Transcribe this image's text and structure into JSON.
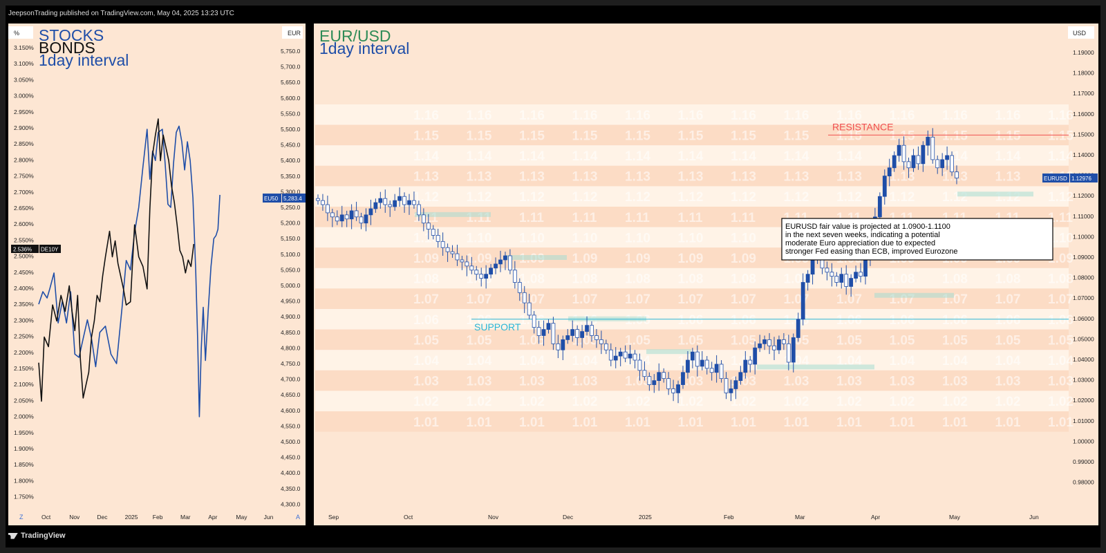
{
  "published": "JeepsonTrading published on TradingView.com, May 04, 2025 13:23 UTC",
  "footer": {
    "brand": "TradingView",
    "logo_icon": "tradingview-logo-icon"
  },
  "colors": {
    "panel_bg": "#fde6d3",
    "stocks": "#1f4ea8",
    "bonds": "#111111",
    "eurusd_title": "#2e8b57",
    "interval": "#1f4ea8",
    "resistance": "#f05050",
    "support": "#29b6d6",
    "candle": "#1f4ea8",
    "zone": "#a5dcd2"
  },
  "left_panel": {
    "title_stocks": "STOCKS",
    "title_bonds": "BONDS",
    "interval": "1day interval",
    "left_unit": "%",
    "right_unit": "EUR",
    "bottom_left": "Z",
    "bottom_right": "A",
    "bond_badge_value": "2.536%",
    "bond_badge_name": "DE10Y",
    "stock_badge_name": "EU50",
    "stock_badge_value": "5,283.4",
    "pct_ticks": [
      "3.150%",
      "3.100%",
      "3.050%",
      "3.000%",
      "2.950%",
      "2.900%",
      "2.850%",
      "2.800%",
      "2.750%",
      "2.700%",
      "2.650%",
      "2.600%",
      "2.550%",
      "2.500%",
      "2.450%",
      "2.400%",
      "2.350%",
      "2.300%",
      "2.250%",
      "2.200%",
      "2.150%",
      "2.100%",
      "2.050%",
      "2.000%",
      "1.950%",
      "1.900%",
      "1.850%",
      "1.800%",
      "1.750%"
    ],
    "eur_ticks": [
      "5,750.0",
      "5,700.0",
      "5,650.0",
      "5,600.0",
      "5,550.0",
      "5,500.0",
      "5,450.0",
      "5,400.0",
      "5,350.0",
      "5,300.0",
      "5,250.0",
      "5,200.0",
      "5,150.0",
      "5,100.0",
      "5,050.0",
      "5,000.0",
      "4,950.0",
      "4,900.0",
      "4,850.0",
      "4,800.0",
      "4,750.0",
      "4,700.0",
      "4,650.0",
      "4,600.0",
      "4,550.0",
      "4,500.0",
      "4,450.0",
      "4,400.0",
      "4,350.0",
      "4,300.0"
    ],
    "x_ticks": [
      "Oct",
      "Nov",
      "Dec",
      "2025",
      "Feb",
      "Mar",
      "Apr",
      "May",
      "Jun"
    ]
  },
  "right_panel": {
    "title": "EUR/USD",
    "interval": "1day interval",
    "unit": "USD",
    "resistance_label": "RESISTANCE",
    "support_label": "SUPPORT",
    "annotation_lines": [
      "EURUSD fair value is projected at 1.0900-1.1100",
      "in the next seven weeks, indicating a potential",
      "moderate Euro appreciation due to expected",
      "stronger Fed easing than ECB, improved Eurozone"
    ],
    "price_badge_name": "EURUSD",
    "price_badge_value": "1.12976",
    "y_ticks": [
      "1.19000",
      "1.18000",
      "1.17000",
      "1.16000",
      "1.15000",
      "1.14000",
      "1.13000",
      "1.12000",
      "1.11000",
      "1.10000",
      "1.09000",
      "1.08000",
      "1.07000",
      "1.06000",
      "1.05000",
      "1.04000",
      "1.03000",
      "1.02000",
      "1.01000",
      "1.00000",
      "0.99000",
      "0.98000"
    ],
    "x_ticks": [
      "Sep",
      "Oct",
      "Nov",
      "Dec",
      "2025",
      "Feb",
      "Mar",
      "Apr",
      "May",
      "Jun"
    ],
    "watermark_levels": [
      "1.16",
      "1.15",
      "1.14",
      "1.13",
      "1.12",
      "1.11",
      "1.10",
      "1.09",
      "1.08",
      "1.07",
      "1.06",
      "1.05",
      "1.04",
      "1.03",
      "1.02",
      "1.01"
    ]
  },
  "chart_data": [
    {
      "type": "line",
      "xlabel": "",
      "ylabel": "",
      "x_axis": [
        "Oct",
        "Nov",
        "Dec",
        "2025",
        "Feb",
        "Mar",
        "Apr",
        "May",
        "Jun"
      ],
      "series": [
        {
          "name": "STOCKS",
          "axis": "EUR",
          "values": [
            [
              0,
              4940
            ],
            [
              0.15,
              4980
            ],
            [
              0.3,
              4960
            ],
            [
              0.4,
              4990
            ],
            [
              0.55,
              5040
            ],
            [
              0.7,
              4880
            ],
            [
              0.85,
              4950
            ],
            [
              1.0,
              4880
            ],
            [
              1.15,
              4980
            ],
            [
              1.3,
              4780
            ],
            [
              1.45,
              4770
            ],
            [
              1.6,
              4830
            ],
            [
              1.75,
              4890
            ],
            [
              1.9,
              4830
            ],
            [
              2.05,
              4740
            ],
            [
              2.2,
              4850
            ],
            [
              2.4,
              4870
            ],
            [
              2.6,
              4780
            ],
            [
              2.8,
              4750
            ],
            [
              3.0,
              4930
            ],
            [
              3.15,
              5080
            ],
            [
              3.3,
              5050
            ],
            [
              3.45,
              5170
            ],
            [
              3.6,
              5250
            ],
            [
              3.75,
              5380
            ],
            [
              3.9,
              5500
            ],
            [
              4.0,
              5340
            ],
            [
              4.1,
              5430
            ],
            [
              4.2,
              5400
            ],
            [
              4.3,
              5490
            ],
            [
              4.45,
              5500
            ],
            [
              4.55,
              5390
            ],
            [
              4.65,
              5260
            ],
            [
              4.75,
              5250
            ],
            [
              4.85,
              5390
            ],
            [
              4.95,
              5490
            ],
            [
              5.05,
              5510
            ],
            [
              5.15,
              5460
            ],
            [
              5.25,
              5370
            ],
            [
              5.35,
              5460
            ],
            [
              5.45,
              5400
            ],
            [
              5.55,
              5280
            ],
            [
              5.65,
              5050
            ],
            [
              5.72,
              4830
            ],
            [
              5.78,
              4580
            ],
            [
              5.85,
              4800
            ],
            [
              5.92,
              4930
            ],
            [
              6.0,
              4760
            ],
            [
              6.1,
              4920
            ],
            [
              6.2,
              5060
            ],
            [
              6.3,
              5150
            ],
            [
              6.38,
              5160
            ],
            [
              6.45,
              5180
            ],
            [
              6.52,
              5290
            ]
          ]
        },
        {
          "name": "BONDS",
          "axis": "%",
          "values": [
            [
              0,
              2.17
            ],
            [
              0.1,
              2.05
            ],
            [
              0.2,
              2.25
            ],
            [
              0.35,
              2.22
            ],
            [
              0.5,
              2.35
            ],
            [
              0.65,
              2.3
            ],
            [
              0.8,
              2.38
            ],
            [
              0.95,
              2.33
            ],
            [
              1.1,
              2.41
            ],
            [
              1.2,
              2.33
            ],
            [
              1.3,
              2.27
            ],
            [
              1.4,
              2.38
            ],
            [
              1.5,
              2.18
            ],
            [
              1.6,
              2.06
            ],
            [
              1.7,
              2.1
            ],
            [
              1.8,
              2.14
            ],
            [
              1.9,
              2.25
            ],
            [
              2.0,
              2.3
            ],
            [
              2.1,
              2.38
            ],
            [
              2.2,
              2.36
            ],
            [
              2.3,
              2.44
            ],
            [
              2.4,
              2.5
            ],
            [
              2.55,
              2.58
            ],
            [
              2.65,
              2.5
            ],
            [
              2.75,
              2.55
            ],
            [
              2.85,
              2.48
            ],
            [
              2.95,
              2.44
            ],
            [
              3.05,
              2.4
            ],
            [
              3.15,
              2.35
            ],
            [
              3.3,
              2.36
            ],
            [
              3.45,
              2.6
            ],
            [
              3.6,
              2.5
            ],
            [
              3.75,
              2.47
            ],
            [
              3.9,
              2.4
            ],
            [
              4.0,
              2.65
            ],
            [
              4.1,
              2.82
            ],
            [
              4.2,
              2.88
            ],
            [
              4.3,
              2.93
            ],
            [
              4.38,
              2.8
            ],
            [
              4.48,
              2.88
            ],
            [
              4.58,
              2.84
            ],
            [
              4.68,
              2.8
            ],
            [
              4.78,
              2.72
            ],
            [
              4.88,
              2.67
            ],
            [
              4.98,
              2.6
            ],
            [
              5.08,
              2.52
            ],
            [
              5.18,
              2.5
            ],
            [
              5.28,
              2.45
            ],
            [
              5.38,
              2.49
            ],
            [
              5.48,
              2.47
            ],
            [
              5.58,
              2.54
            ]
          ]
        }
      ]
    },
    {
      "type": "candlestick",
      "title": "EUR/USD",
      "xlabel": "",
      "ylabel": "USD",
      "x_axis": [
        "Sep",
        "Oct",
        "Nov",
        "Dec",
        "2025",
        "Feb",
        "Mar",
        "Apr",
        "May",
        "Jun"
      ],
      "ylim": [
        0.975,
        1.195
      ],
      "resistance": 1.15,
      "support": 1.06,
      "current_price": 1.12976,
      "closes": [
        1.118,
        1.116,
        1.112,
        1.11,
        1.108,
        1.111,
        1.109,
        1.113,
        1.11,
        1.107,
        1.111,
        1.114,
        1.117,
        1.119,
        1.116,
        1.115,
        1.118,
        1.12,
        1.116,
        1.118,
        1.116,
        1.111,
        1.107,
        1.104,
        1.101,
        1.098,
        1.095,
        1.093,
        1.092,
        1.089,
        1.088,
        1.086,
        1.084,
        1.082,
        1.08,
        1.082,
        1.085,
        1.087,
        1.089,
        1.091,
        1.084,
        1.078,
        1.073,
        1.068,
        1.062,
        1.056,
        1.052,
        1.055,
        1.058,
        1.048,
        1.045,
        1.05,
        1.052,
        1.055,
        1.051,
        1.054,
        1.057,
        1.052,
        1.05,
        1.048,
        1.045,
        1.04,
        1.042,
        1.044,
        1.041,
        1.043,
        1.04,
        1.035,
        1.032,
        1.028,
        1.03,
        1.034,
        1.031,
        1.026,
        1.024,
        1.028,
        1.034,
        1.04,
        1.044,
        1.037,
        1.04,
        1.036,
        1.034,
        1.038,
        1.031,
        1.024,
        1.026,
        1.03,
        1.034,
        1.04,
        1.038,
        1.046,
        1.048,
        1.05,
        1.047,
        1.045,
        1.05,
        1.048,
        1.039,
        1.051,
        1.06,
        1.078,
        1.082,
        1.09,
        1.089,
        1.085,
        1.083,
        1.081,
        1.078,
        1.082,
        1.076,
        1.08,
        1.083,
        1.081,
        1.091,
        1.096,
        1.11,
        1.12,
        1.13,
        1.134,
        1.14,
        1.145,
        1.137,
        1.134,
        1.14,
        1.136,
        1.145,
        1.149,
        1.138,
        1.134,
        1.138,
        1.14,
        1.132,
        1.129
      ]
    }
  ]
}
